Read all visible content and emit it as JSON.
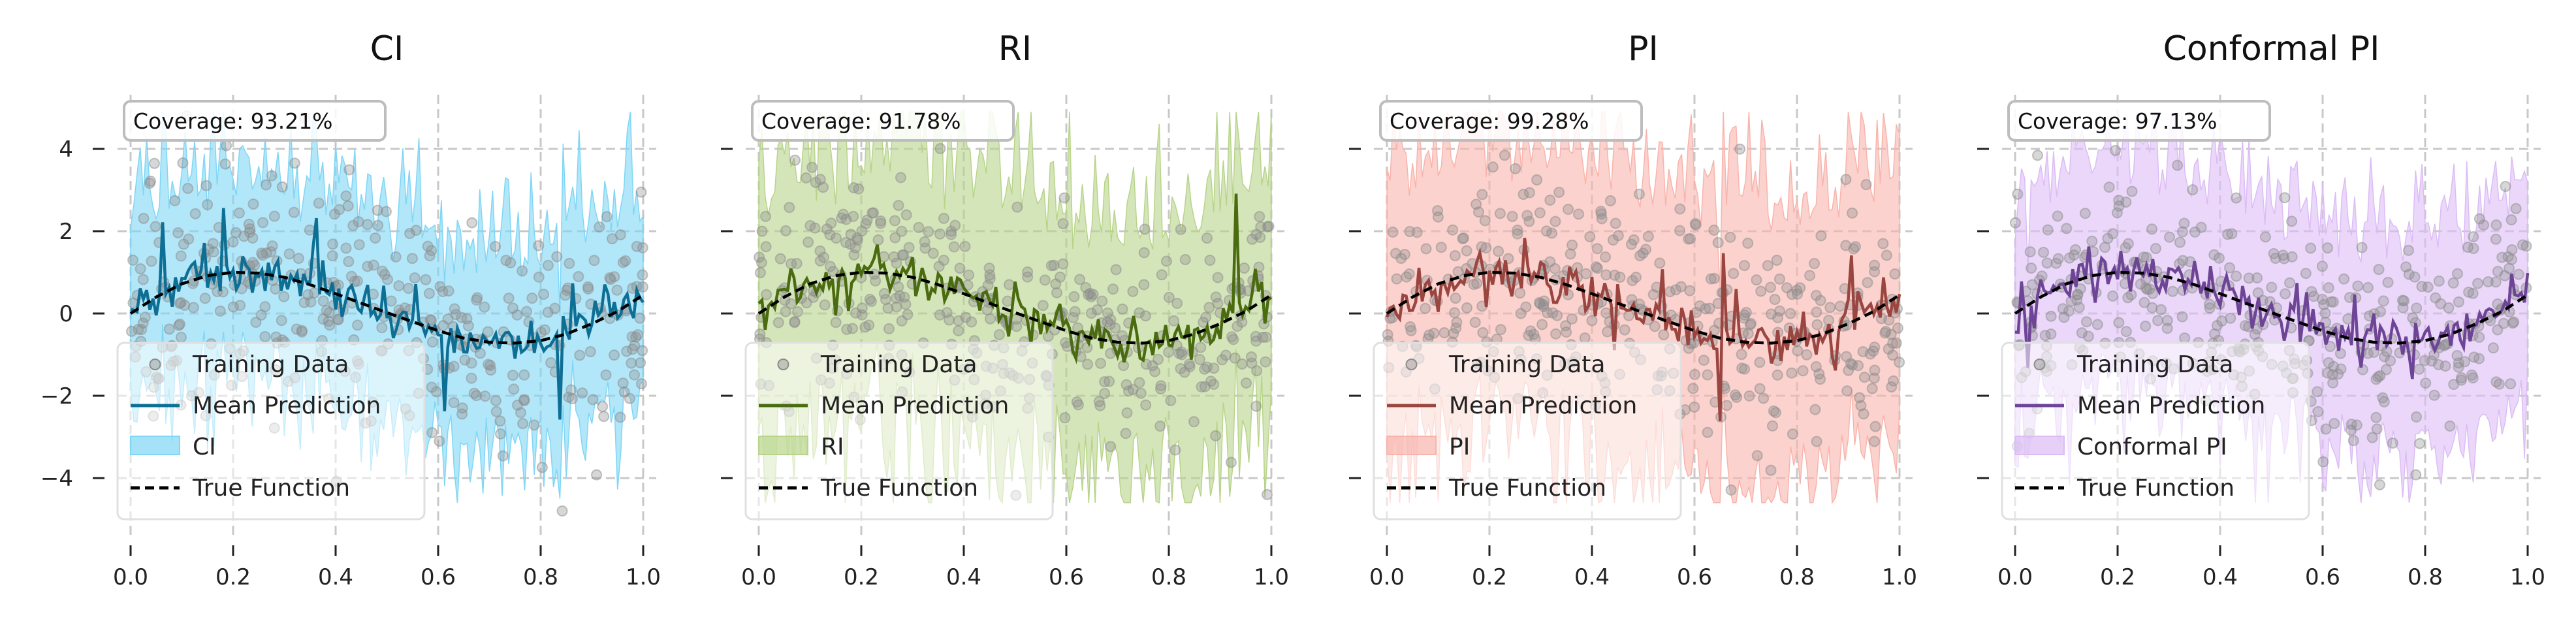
{
  "chart_data": [
    {
      "type": "line",
      "title": "CI",
      "coverage_label": "Coverage: 93.21%",
      "band_label": "CI",
      "colors": {
        "line": "#0e6f95",
        "band": "#7fd6f5",
        "points": "#8c8c8c"
      },
      "xlim": [
        0.0,
        1.0
      ],
      "ylim": [
        -5,
        5
      ],
      "xticks": [
        "0.0",
        "0.2",
        "0.4",
        "0.6",
        "0.8",
        "1.0"
      ],
      "yticks": [
        "4",
        "2",
        "0",
        "−2",
        "−4"
      ],
      "ytick_values": [
        4,
        2,
        0,
        -2,
        -4
      ],
      "xtick_values": [
        0.0,
        0.2,
        0.4,
        0.6,
        0.8,
        1.0
      ],
      "band_halfwidth": 1.8,
      "band_spread": 1.0,
      "grid": true,
      "legend_placement": "lower-left"
    },
    {
      "type": "line",
      "title": "RI",
      "coverage_label": "Coverage: 91.78%",
      "band_label": "RI",
      "colors": {
        "line": "#4a6b10",
        "band": "#b8d48a",
        "points": "#8c8c8c"
      },
      "xlim": [
        0.0,
        1.0
      ],
      "ylim": [
        -5,
        5
      ],
      "xticks": [
        "0.0",
        "0.2",
        "0.4",
        "0.6",
        "0.8",
        "1.0"
      ],
      "yticks": [
        "4",
        "2",
        "0",
        "−2",
        "−4"
      ],
      "ytick_values": [
        4,
        2,
        0,
        -2,
        -4
      ],
      "xtick_values": [
        0.0,
        0.2,
        0.4,
        0.6,
        0.8,
        1.0
      ],
      "band_halfwidth": 2.2,
      "band_spread": 1.6,
      "grid": true,
      "legend_placement": "lower-left"
    },
    {
      "type": "line",
      "title": "PI",
      "coverage_label": "Coverage: 99.28%",
      "band_label": "PI",
      "colors": {
        "line": "#9a4540",
        "band": "#f8b4ac",
        "points": "#8c8c8c"
      },
      "xlim": [
        0.0,
        1.0
      ],
      "ylim": [
        -5,
        5
      ],
      "xticks": [
        "0.0",
        "0.2",
        "0.4",
        "0.6",
        "0.8",
        "1.0"
      ],
      "yticks": [
        "4",
        "2",
        "0",
        "−2",
        "−4"
      ],
      "ytick_values": [
        4,
        2,
        0,
        -2,
        -4
      ],
      "xtick_values": [
        0.0,
        0.2,
        0.4,
        0.6,
        0.8,
        1.0
      ],
      "band_halfwidth": 2.7,
      "band_spread": 1.2,
      "grid": true,
      "legend_placement": "lower-left"
    },
    {
      "type": "line",
      "title": "Conformal PI",
      "coverage_label": "Coverage: 97.13%",
      "band_label": "Conformal PI",
      "colors": {
        "line": "#6e4596",
        "band": "#dcbcf5",
        "points": "#8c8c8c"
      },
      "xlim": [
        0.0,
        1.0
      ],
      "ylim": [
        -5,
        5
      ],
      "xticks": [
        "0.0",
        "0.2",
        "0.4",
        "0.6",
        "0.8",
        "1.0"
      ],
      "yticks": [
        "4",
        "2",
        "0",
        "−2",
        "−4"
      ],
      "ytick_values": [
        4,
        2,
        0,
        -2,
        -4
      ],
      "xtick_values": [
        0.0,
        0.2,
        0.4,
        0.6,
        0.8,
        1.0
      ],
      "band_halfwidth": 2.1,
      "band_spread": 1.0,
      "grid": true,
      "legend_placement": "lower-left"
    }
  ],
  "legend_labels": {
    "training_data": "Training Data",
    "mean_prediction": "Mean Prediction",
    "true_function": "True Function"
  },
  "true_function": {
    "x": [
      0.0,
      0.05,
      0.1,
      0.15,
      0.2,
      0.25,
      0.3,
      0.35,
      0.4,
      0.45,
      0.5,
      0.55,
      0.6,
      0.65,
      0.7,
      0.75,
      0.8,
      0.85,
      0.9,
      0.95,
      1.0
    ],
    "y": [
      0.0,
      0.4,
      0.72,
      0.92,
      1.0,
      0.98,
      0.88,
      0.7,
      0.48,
      0.25,
      0.02,
      -0.2,
      -0.42,
      -0.6,
      -0.7,
      -0.72,
      -0.66,
      -0.5,
      -0.25,
      0.05,
      0.45
    ]
  },
  "n_training_points": 400
}
